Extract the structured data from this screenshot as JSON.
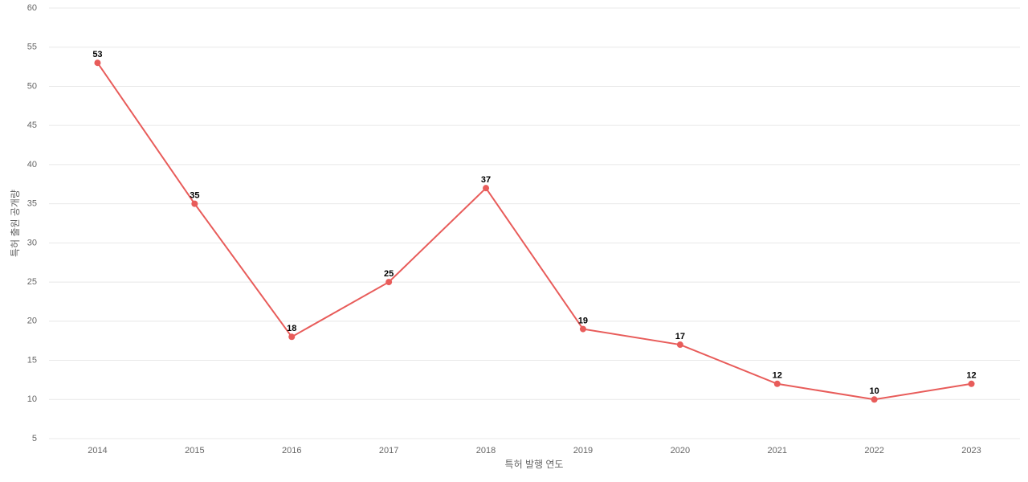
{
  "chart_data": {
    "type": "line",
    "x_label": "특허 발행 연도",
    "y_label": "특허 출원 공개량",
    "categories": [
      "2014",
      "2015",
      "2016",
      "2017",
      "2018",
      "2019",
      "2020",
      "2021",
      "2022",
      "2023"
    ],
    "values": [
      53,
      35,
      18,
      25,
      37,
      19,
      17,
      12,
      10,
      12
    ],
    "color": "#e85c5a",
    "ylim": [
      5,
      60
    ],
    "yticks": [
      5,
      10,
      15,
      20,
      25,
      30,
      35,
      40,
      45,
      50,
      55,
      60
    ],
    "grid": true,
    "value_labels_shown": true
  }
}
